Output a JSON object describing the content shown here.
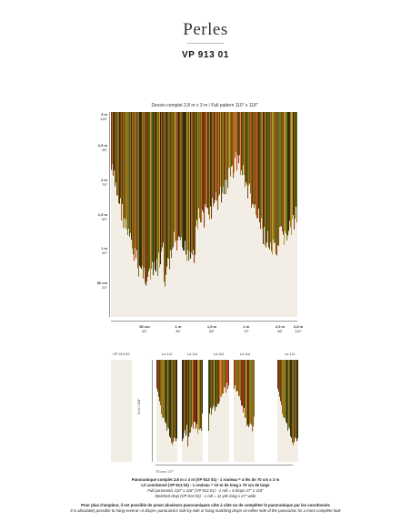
{
  "header": {
    "title": "Perles",
    "reference": "VP 913 01"
  },
  "pattern": {
    "caption": "Dessin complet 2,8 m x 3 m / Full pattern 110\" x 118\"",
    "y_labels": [
      {
        "m": "3 m",
        "in": "118\""
      },
      {
        "m": "2,5 m",
        "in": "98\""
      },
      {
        "m": "2 m",
        "in": "79\""
      },
      {
        "m": "1,5 m",
        "in": "59\""
      },
      {
        "m": "1 m",
        "in": "39\""
      },
      {
        "m": "50 cm",
        "in": "20\""
      }
    ],
    "x_labels": [
      {
        "m": "50 cm",
        "in": "20\""
      },
      {
        "m": "1 m",
        "in": "39\""
      },
      {
        "m": "1,5 m",
        "in": "59\""
      },
      {
        "m": "2 m",
        "in": "79\""
      },
      {
        "m": "2,5 m",
        "in": "98\""
      },
      {
        "m": "2,8 m",
        "in": "110\""
      }
    ]
  },
  "panels": {
    "labels": [
      "VP 913 02",
      "Lé 1/4",
      "Lé 2/4",
      "Lé 3/4",
      "Lé 4/4",
      "Lé 1/4"
    ],
    "height_label": "3 m / 118\"",
    "width_label": "70 cm / 27\""
  },
  "info": {
    "line1": "Panoramique complet 2,8 m x 3 m (VP 913 01) - 1 rouleau = 4 lés de 70 cm x 3 m",
    "line2": "Lé coordonné (VP 913 02) - 1 rouleau = 10 m de long x 70 cm de large",
    "line3": "Full panoramic 110\" x 118\" (VP 913 01) - 1 roll = 4 drops 27\" x 118\"",
    "line4": "Matched drop (VP 913 02) - 1 roll = 11 yds long x 27\" wide",
    "line5": "Pour plus d'ampleur, il est possible de poser plusieurs panoramiques côte à côte ou de compléter le panoramique par les coordonnés",
    "line6": "It is absolutely possible to hang several «4 drops» panoramics side by side or hang matching drops on either side of the panoramic for a more complete look"
  },
  "colors": {
    "background": "#f2eee5",
    "stripes": [
      "#6b3a12",
      "#8a5a14",
      "#a8791c",
      "#6d7a1e",
      "#4f5f16",
      "#2f3514",
      "#8c2a14",
      "#b2431c",
      "#c4952a",
      "#7d6a18",
      "#3e2410",
      "#96701a"
    ]
  }
}
